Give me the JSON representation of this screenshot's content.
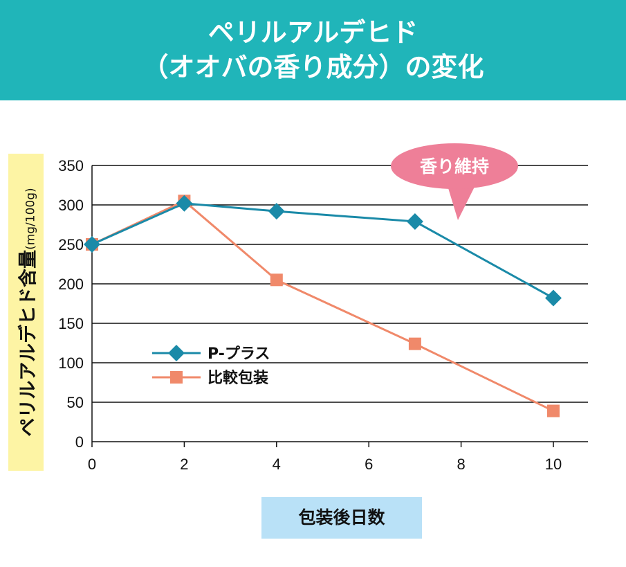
{
  "header": {
    "title_line1": "ペリルアルデヒド",
    "title_line2": "（オオバの香り成分）の変化"
  },
  "colors": {
    "header": "#20b5b9",
    "p_plus": "#1a8aa8",
    "compare": "#f0896a",
    "callout": "#ee7f98"
  },
  "chart_data": {
    "type": "line",
    "title": "ペリルアルデヒド（オオバの香り成分）の変化",
    "xlabel": "包装後日数",
    "ylabel": "ペリルアルデヒド含量",
    "ylabel_unit": "(mg/100g)",
    "xlim": [
      0,
      10
    ],
    "ylim": [
      0,
      350
    ],
    "xticks": [
      0,
      2,
      4,
      6,
      8,
      10
    ],
    "yticks": [
      0,
      50,
      100,
      150,
      200,
      250,
      300,
      350
    ],
    "grid": "horizontal",
    "legend_placement": "center-left",
    "series": [
      {
        "name": "P-プラス",
        "marker": "diamond",
        "x": [
          0,
          2,
          4,
          7,
          10
        ],
        "y": [
          250,
          302,
          292,
          279,
          182
        ]
      },
      {
        "name": "比較包装",
        "marker": "square",
        "x": [
          0,
          2,
          4,
          7,
          10
        ],
        "y": [
          250,
          305,
          205,
          124,
          39
        ]
      }
    ],
    "annotation": "香り維持"
  }
}
